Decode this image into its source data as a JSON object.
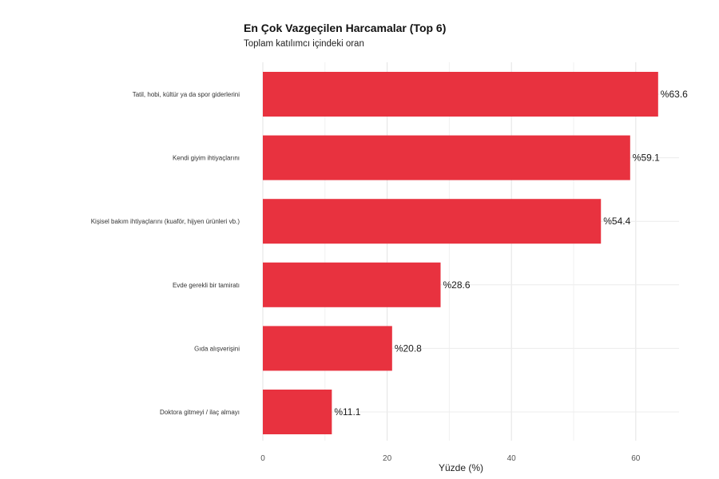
{
  "chart_data": {
    "type": "bar",
    "orientation": "horizontal",
    "title": "En Çok Vazgeçilen Harcamalar (Top 6)",
    "subtitle": "Toplam katılımcı içindeki oran",
    "xlabel": "Yüzde (%)",
    "ylabel": "",
    "xlim": [
      0,
      66
    ],
    "x_ticks": [
      "0",
      "20",
      "40",
      "60"
    ],
    "grid": true,
    "bar_color": "#e8323f",
    "label_prefix": "%",
    "categories": [
      "Tatil, hobi, kültür ya da spor giderlerini",
      "Kendi giyim ihtiyaçlarını",
      "Kişisel bakım ihtiyaçlarını (kuaför, hijyen ürünleri vb.)",
      "Evde gerekli bir tamiratı",
      "Gıda alışverişini",
      "Doktora gitmeyi / ilaç almayı"
    ],
    "values": [
      63.6,
      59.1,
      54.4,
      28.6,
      20.8,
      11.1
    ],
    "value_labels": [
      "%63.6",
      "%59.1",
      "%54.4",
      "%28.6",
      "%20.8",
      "%11.1"
    ]
  }
}
